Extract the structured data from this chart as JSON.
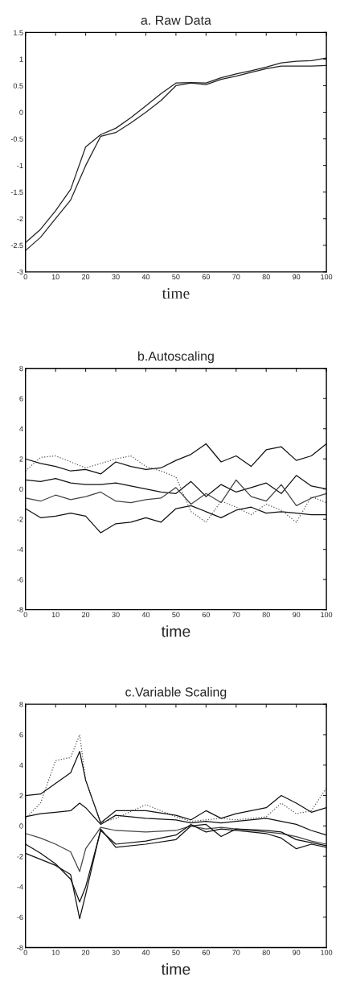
{
  "chart_data": [
    {
      "type": "line",
      "title": "a. Raw Data",
      "xlabel": "time",
      "xlim": [
        0,
        100
      ],
      "ylim": [
        -3,
        1.5
      ],
      "xticks": [
        0,
        10,
        20,
        30,
        40,
        50,
        60,
        70,
        80,
        90,
        100
      ],
      "yticks": [
        -3,
        -2.5,
        -2,
        -1.5,
        -1,
        -0.5,
        0,
        0.5,
        1,
        1.5
      ],
      "grid": false,
      "x": [
        0,
        5,
        10,
        15,
        20,
        25,
        30,
        35,
        40,
        45,
        50,
        55,
        60,
        65,
        70,
        75,
        80,
        85,
        90,
        95,
        100
      ],
      "series": [
        {
          "color": "#222222",
          "values": [
            -2.45,
            -2.2,
            -1.85,
            -1.45,
            -0.65,
            -0.42,
            -0.3,
            -0.1,
            0.12,
            0.35,
            0.55,
            0.56,
            0.55,
            0.65,
            0.72,
            0.78,
            0.85,
            0.93,
            0.96,
            0.97,
            1.02
          ]
        },
        {
          "color": "#222222",
          "values": [
            -2.6,
            -2.35,
            -2.0,
            -1.65,
            -1.0,
            -0.45,
            -0.38,
            -0.2,
            0.0,
            0.22,
            0.5,
            0.55,
            0.52,
            0.62,
            0.68,
            0.75,
            0.82,
            0.87,
            0.87,
            0.87,
            0.88
          ]
        }
      ]
    },
    {
      "type": "line",
      "title": "b.Autoscaling",
      "xlabel": "time",
      "xlim": [
        0,
        100
      ],
      "ylim": [
        -8,
        8
      ],
      "xticks": [
        0,
        10,
        20,
        30,
        40,
        50,
        60,
        70,
        80,
        90,
        100
      ],
      "yticks": [
        -8,
        -6,
        -4,
        -2,
        0,
        2,
        4,
        6,
        8
      ],
      "grid": false,
      "x": [
        0,
        5,
        10,
        15,
        20,
        25,
        30,
        35,
        40,
        45,
        50,
        55,
        60,
        65,
        70,
        75,
        80,
        85,
        90,
        95,
        100
      ],
      "series": [
        {
          "color": "#111111",
          "values": [
            2.0,
            1.7,
            1.5,
            1.2,
            1.3,
            1.0,
            1.8,
            1.5,
            1.3,
            1.4,
            1.9,
            2.3,
            3.0,
            1.8,
            2.2,
            1.5,
            2.6,
            2.8,
            1.9,
            2.2,
            3.0
          ]
        },
        {
          "color": "#111111",
          "values": [
            -1.3,
            -1.9,
            -1.8,
            -1.6,
            -1.8,
            -2.9,
            -2.3,
            -2.2,
            -1.9,
            -2.2,
            -1.3,
            -1.1,
            -1.5,
            -1.9,
            -1.4,
            -1.2,
            -1.6,
            -1.5,
            -1.6,
            -1.7,
            -1.7
          ]
        },
        {
          "color": "#111111",
          "values": [
            0.6,
            0.5,
            0.7,
            0.4,
            0.3,
            0.3,
            0.4,
            0.2,
            0.0,
            -0.2,
            -0.3,
            0.5,
            -0.5,
            0.3,
            -0.2,
            0.1,
            0.4,
            -0.3,
            0.9,
            0.2,
            0.0
          ]
        },
        {
          "color": "#444444",
          "values": [
            -0.6,
            -0.8,
            -0.4,
            -0.7,
            -0.5,
            -0.2,
            -0.8,
            -0.9,
            -0.7,
            -0.6,
            0.1,
            -1.0,
            -0.3,
            -0.9,
            0.6,
            -0.5,
            -0.8,
            0.3,
            -1.1,
            -0.6,
            -0.3
          ]
        },
        {
          "color": "#555555",
          "line_style": "dotted",
          "values": [
            1.2,
            2.1,
            2.2,
            1.8,
            1.4,
            1.7,
            2.0,
            2.2,
            1.5,
            1.2,
            0.8,
            -1.5,
            -2.2,
            -0.8,
            -1.2,
            -1.7,
            -1.0,
            -1.4,
            -2.2,
            -0.5,
            -0.9
          ]
        }
      ]
    },
    {
      "type": "line",
      "title": "c.Variable Scaling",
      "xlabel": "time",
      "xlim": [
        0,
        100
      ],
      "ylim": [
        -8,
        8
      ],
      "xticks": [
        0,
        10,
        20,
        30,
        40,
        50,
        60,
        70,
        80,
        90,
        100
      ],
      "yticks": [
        -8,
        -6,
        -4,
        -2,
        0,
        2,
        4,
        6,
        8
      ],
      "grid": false,
      "x": [
        0,
        5,
        10,
        15,
        18,
        20,
        25,
        30,
        40,
        50,
        55,
        60,
        65,
        70,
        80,
        85,
        90,
        95,
        100
      ],
      "series": [
        {
          "color": "#555555",
          "line_style": "dotted",
          "values": [
            0.5,
            1.5,
            4.3,
            4.5,
            6.0,
            3.0,
            0.2,
            0.5,
            1.4,
            0.6,
            0.3,
            0.4,
            0.5,
            0.4,
            0.6,
            1.5,
            0.8,
            1.0,
            2.5
          ]
        },
        {
          "color": "#111111",
          "values": [
            2.0,
            2.1,
            2.8,
            3.5,
            4.9,
            3.0,
            0.2,
            1.0,
            1.0,
            0.7,
            0.4,
            1.0,
            0.5,
            0.8,
            1.2,
            2.0,
            1.5,
            0.9,
            1.2
          ]
        },
        {
          "color": "#111111",
          "values": [
            0.6,
            0.8,
            0.9,
            1.0,
            1.5,
            1.2,
            0.1,
            0.7,
            0.5,
            0.4,
            0.2,
            0.3,
            0.2,
            0.3,
            0.5,
            0.3,
            0.1,
            -0.3,
            -0.6
          ]
        },
        {
          "color": "#444444",
          "values": [
            -0.5,
            -0.8,
            -1.2,
            -1.7,
            -3.0,
            -1.5,
            -0.1,
            -0.3,
            -0.4,
            -0.3,
            0.0,
            -0.2,
            -0.1,
            -0.2,
            -0.4,
            -0.5,
            -0.7,
            -1.0,
            -1.2
          ]
        },
        {
          "color": "#111111",
          "values": [
            -1.2,
            -1.8,
            -2.5,
            -3.5,
            -5.0,
            -4.0,
            -0.3,
            -1.2,
            -1.0,
            -0.6,
            0.1,
            -0.4,
            -0.2,
            -0.3,
            -0.5,
            -0.8,
            -1.5,
            -1.2,
            -1.4
          ]
        },
        {
          "color": "#111111",
          "values": [
            -1.8,
            -2.2,
            -2.6,
            -3.2,
            -6.1,
            -4.5,
            -0.2,
            -1.4,
            -1.2,
            -0.9,
            0.0,
            0.1,
            -0.7,
            -0.2,
            -0.3,
            -0.4,
            -0.9,
            -1.1,
            -1.3
          ]
        }
      ]
    }
  ]
}
